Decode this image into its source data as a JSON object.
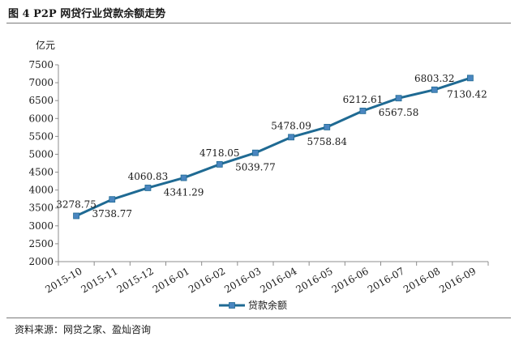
{
  "figure": {
    "title": "图 4    P2P 网贷行业贷款余额走势",
    "source": "资料来源：网贷之家、盈灿咨询"
  },
  "chart_data": {
    "type": "line",
    "title": "",
    "ylabel": "亿元",
    "xlabel": "",
    "categories": [
      "2015-10",
      "2015-11",
      "2015-12",
      "2016-01",
      "2016-02",
      "2016-03",
      "2016-04",
      "2016-05",
      "2016-06",
      "2016-07",
      "2016-08",
      "2016-09"
    ],
    "series": [
      {
        "name": "贷款余额",
        "values": [
          3278.75,
          3738.77,
          4060.83,
          4341.29,
          4718.05,
          5039.77,
          5478.09,
          5758.84,
          6212.61,
          6567.58,
          6803.32,
          7130.42
        ],
        "value_labels": [
          "3278.75",
          "3738.77",
          "4060.83",
          "4341.29",
          "4718.05",
          "5039.77",
          "5478.09",
          "5758.84",
          "6212.61",
          "6567.58",
          "6803.32",
          "7130.42"
        ],
        "color": "#1f6a93",
        "marker_color": "#4a86c0"
      }
    ],
    "ylim": [
      2000,
      7500
    ],
    "yticks": [
      2000,
      2500,
      3000,
      3500,
      4000,
      4500,
      5000,
      5500,
      6000,
      6500,
      7000,
      7500
    ],
    "grid": false,
    "legend_position": "bottom"
  }
}
